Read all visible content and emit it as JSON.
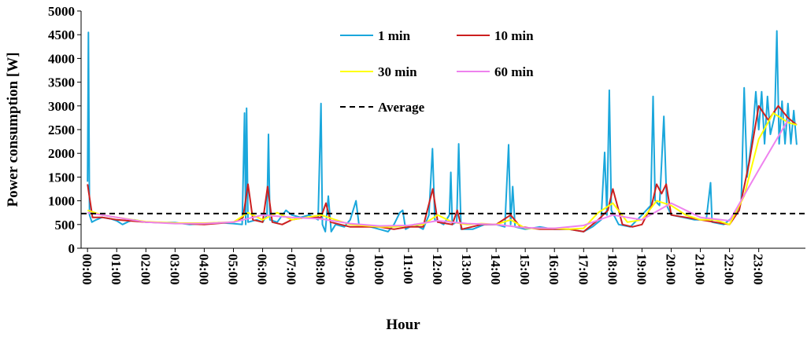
{
  "chart_data": {
    "type": "line",
    "y_label": "Power consumption [W]",
    "x_label": "Hour",
    "xlim": [
      -0.22,
      24.6
    ],
    "ylim": [
      0,
      5000
    ],
    "yticks": [
      0,
      500,
      1000,
      1500,
      2000,
      2500,
      3000,
      3500,
      4000,
      4500,
      5000
    ],
    "xticks": [
      {
        "value": 0,
        "label": "00:00"
      },
      {
        "value": 1,
        "label": "01:00"
      },
      {
        "value": 2,
        "label": "02:00"
      },
      {
        "value": 3,
        "label": "03:00"
      },
      {
        "value": 4,
        "label": "04:00"
      },
      {
        "value": 5,
        "label": "05:00"
      },
      {
        "value": 6,
        "label": "06:00"
      },
      {
        "value": 7,
        "label": "07:00"
      },
      {
        "value": 8,
        "label": "08:00"
      },
      {
        "value": 9,
        "label": "09:00"
      },
      {
        "value": 10,
        "label": "10:00"
      },
      {
        "value": 11,
        "label": "11:00"
      },
      {
        "value": 12,
        "label": "12:00"
      },
      {
        "value": 13,
        "label": "13:00"
      },
      {
        "value": 14,
        "label": "14:00"
      },
      {
        "value": 15,
        "label": "15:00"
      },
      {
        "value": 16,
        "label": "16:00"
      },
      {
        "value": 17,
        "label": "17:00"
      },
      {
        "value": 18,
        "label": "18:00"
      },
      {
        "value": 19,
        "label": "19:00"
      },
      {
        "value": 20,
        "label": "20:00"
      },
      {
        "value": 21,
        "label": "21:00"
      },
      {
        "value": 22,
        "label": "22:00"
      },
      {
        "value": 23,
        "label": "23:00"
      }
    ],
    "series": [
      {
        "name": "1 min",
        "color": "#1aa7dc",
        "x": [
          0.0,
          0.03,
          0.07,
          0.15,
          0.3,
          0.5,
          0.8,
          1.0,
          1.2,
          1.4,
          1.6,
          2.0,
          2.5,
          3.0,
          3.5,
          4.0,
          4.5,
          5.0,
          5.3,
          5.38,
          5.42,
          5.45,
          5.5,
          5.8,
          6.0,
          6.15,
          6.2,
          6.25,
          6.5,
          6.8,
          7.0,
          7.3,
          7.6,
          7.9,
          8.0,
          8.05,
          8.15,
          8.25,
          8.35,
          8.5,
          8.8,
          9.0,
          9.2,
          9.3,
          9.7,
          10.0,
          10.3,
          10.5,
          10.7,
          10.8,
          10.9,
          11.2,
          11.5,
          11.7,
          11.82,
          11.9,
          12.2,
          12.4,
          12.45,
          12.5,
          12.65,
          12.72,
          12.8,
          13.2,
          13.6,
          14.0,
          14.3,
          14.43,
          14.5,
          14.57,
          14.65,
          15.0,
          15.5,
          16.0,
          16.5,
          17.0,
          17.3,
          17.6,
          17.72,
          17.8,
          17.88,
          17.95,
          18.2,
          18.6,
          19.0,
          19.3,
          19.38,
          19.45,
          19.6,
          19.75,
          19.85,
          20.0,
          20.4,
          20.8,
          21.2,
          21.35,
          21.4,
          21.8,
          22.0,
          22.2,
          22.4,
          22.5,
          22.6,
          22.8,
          22.9,
          23.0,
          23.1,
          23.2,
          23.3,
          23.4,
          23.55,
          23.62,
          23.7,
          23.8,
          23.9,
          24.0,
          24.1,
          24.2,
          24.3
        ],
        "values": [
          1400,
          4550,
          700,
          550,
          600,
          650,
          620,
          580,
          500,
          560,
          600,
          550,
          540,
          540,
          500,
          520,
          540,
          520,
          500,
          2850,
          500,
          2950,
          550,
          600,
          550,
          700,
          2400,
          600,
          550,
          800,
          700,
          650,
          700,
          600,
          3050,
          500,
          350,
          1100,
          350,
          500,
          450,
          600,
          1000,
          500,
          450,
          400,
          350,
          500,
          750,
          800,
          400,
          500,
          400,
          700,
          2100,
          600,
          500,
          700,
          1600,
          500,
          550,
          2200,
          400,
          400,
          500,
          500,
          450,
          2180,
          500,
          1300,
          450,
          400,
          450,
          400,
          400,
          350,
          450,
          600,
          2020,
          700,
          3330,
          800,
          500,
          450,
          700,
          900,
          3200,
          1000,
          900,
          2780,
          900,
          700,
          650,
          600,
          600,
          1380,
          550,
          500,
          600,
          700,
          1000,
          3380,
          1500,
          2500,
          3300,
          2500,
          3300,
          2200,
          3200,
          2400,
          2800,
          4580,
          2200,
          3100,
          2200,
          3050,
          2200,
          2900,
          2180
        ]
      },
      {
        "name": "10 min",
        "color": "#cc1f1f",
        "x": [
          0,
          0.17,
          0.5,
          1,
          2,
          3,
          4,
          5,
          5.33,
          5.5,
          5.67,
          6,
          6.17,
          6.33,
          6.67,
          7,
          7.5,
          8,
          8.17,
          8.33,
          9,
          10,
          10.5,
          11,
          11.5,
          11.83,
          12,
          12.5,
          12.67,
          12.83,
          13.5,
          14,
          14.5,
          14.83,
          15.5,
          16.5,
          17,
          17.5,
          17.83,
          18,
          18.33,
          18.67,
          19,
          19.33,
          19.5,
          19.67,
          19.83,
          20,
          20.5,
          21,
          21.5,
          22,
          22.33,
          22.67,
          23,
          23.33,
          23.67,
          24,
          24.3
        ],
        "values": [
          1350,
          650,
          650,
          600,
          550,
          530,
          500,
          550,
          650,
          1350,
          600,
          550,
          1300,
          550,
          500,
          600,
          650,
          650,
          950,
          550,
          450,
          450,
          400,
          450,
          450,
          1250,
          550,
          500,
          800,
          400,
          500,
          500,
          700,
          450,
          400,
          400,
          350,
          600,
          800,
          1250,
          500,
          450,
          500,
          900,
          1350,
          1150,
          1350,
          700,
          650,
          600,
          550,
          500,
          800,
          1800,
          3000,
          2700,
          3000,
          2750,
          2600
        ]
      },
      {
        "name": "30 min",
        "color": "#ffff00",
        "x": [
          0,
          0.5,
          1,
          2,
          3,
          4,
          5,
          5.5,
          6,
          6.5,
          7,
          7.5,
          8,
          8.5,
          9,
          10,
          10.5,
          11,
          11.5,
          12,
          12.5,
          13,
          13.5,
          14,
          14.5,
          15,
          16,
          16.5,
          17,
          17.5,
          18,
          18.5,
          19,
          19.5,
          20,
          20.5,
          21,
          21.5,
          22,
          22.5,
          23,
          23.5,
          24,
          24.3
        ],
        "values": [
          800,
          700,
          650,
          560,
          530,
          530,
          550,
          750,
          600,
          750,
          600,
          650,
          700,
          600,
          500,
          450,
          450,
          480,
          500,
          700,
          550,
          500,
          520,
          500,
          600,
          420,
          420,
          400,
          420,
          750,
          950,
          550,
          600,
          1000,
          900,
          700,
          600,
          600,
          500,
          1100,
          2300,
          2850,
          2650,
          2600
        ]
      },
      {
        "name": "60 min",
        "color": "#ee82ee",
        "x": [
          0,
          1,
          2,
          3,
          4,
          5,
          6,
          7,
          8,
          9,
          10,
          11,
          12,
          13,
          14,
          15,
          16,
          17,
          18,
          19,
          20,
          21,
          22,
          23,
          24
        ],
        "values": [
          750,
          650,
          550,
          520,
          520,
          550,
          700,
          650,
          620,
          520,
          470,
          480,
          580,
          520,
          500,
          430,
          420,
          480,
          700,
          600,
          950,
          650,
          580,
          1650,
          2700
        ]
      }
    ],
    "reference_line": {
      "name": "Average",
      "value": 730,
      "color": "#000000"
    }
  }
}
